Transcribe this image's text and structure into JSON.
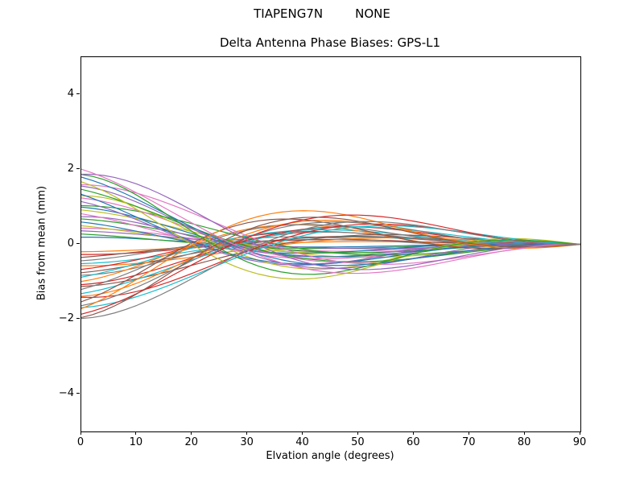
{
  "chart_data": {
    "type": "line",
    "suptitle_left": "TIAPENG7N",
    "suptitle_right": "NONE",
    "title": "Delta Antenna Phase Biases: GPS-L1",
    "xlabel": "Elvation angle (degrees)",
    "ylabel": "Bias from mean (mm)",
    "xlim": [
      0,
      90
    ],
    "ylim": [
      -5,
      5
    ],
    "xticks": [
      0,
      10,
      20,
      30,
      40,
      50,
      60,
      70,
      80,
      90
    ],
    "yticks": [
      -4,
      -2,
      0,
      2,
      4
    ],
    "grid": false,
    "legend": "none",
    "background": "#ffffff",
    "axes_color": "#000000",
    "line_width": 1.2,
    "x_sample_step": 2,
    "n_series": 48,
    "series_model": "y = amp * cos(2*pi*x/period + phase) * exp(-x/decay) * (1 - (x/90)^3)",
    "amps": [
      0.2,
      -0.2,
      0.28,
      -0.28,
      0.36,
      -0.36,
      0.44,
      -0.44,
      0.52,
      -0.52,
      0.6,
      -0.6,
      0.68,
      -0.68,
      0.76,
      -0.76,
      0.84,
      -0.84,
      0.92,
      -0.92,
      1.0,
      -1.0,
      1.08,
      -1.08,
      1.16,
      -1.16,
      1.24,
      -1.24,
      1.32,
      -1.32,
      1.4,
      -1.4,
      1.48,
      -1.48,
      1.56,
      -1.56,
      1.64,
      -1.64,
      1.72,
      -1.72,
      1.8,
      -1.8,
      1.88,
      -1.88,
      1.96,
      -1.96,
      2.04,
      -2.04
    ],
    "phases": [
      -0.3,
      -0.06,
      0.18,
      -0.24,
      0,
      0.24,
      -0.18,
      0.06,
      0.3,
      -0.12,
      0.12,
      -0.3,
      -0.06,
      0.18,
      -0.24,
      0,
      0.24,
      -0.18,
      0.06,
      0.3,
      -0.12,
      0.12,
      -0.3,
      -0.06,
      0.18,
      -0.24,
      0,
      0.24,
      -0.18,
      0.06,
      0.3,
      -0.12,
      0.12,
      -0.3,
      -0.06,
      0.18,
      -0.24,
      0,
      0.24,
      -0.18,
      0.06,
      0.3,
      -0.12,
      0.12,
      -0.3,
      -0.06,
      0.18,
      -0.24
    ],
    "periods": [
      88,
      118,
      106,
      94,
      124,
      112,
      100,
      88,
      118,
      106,
      94,
      124,
      112,
      100,
      88,
      118,
      106,
      94,
      124,
      112,
      100,
      88,
      118,
      106,
      94,
      124,
      112,
      100,
      88,
      118,
      106,
      94,
      124,
      112,
      100,
      88,
      118,
      106,
      94,
      124,
      112,
      100,
      88,
      118,
      106,
      94,
      124,
      112
    ],
    "decays": [
      52,
      73,
      59,
      80,
      66,
      52,
      73,
      59,
      80,
      66,
      52,
      73,
      59,
      80,
      66,
      52,
      73,
      59,
      80,
      66,
      52,
      73,
      59,
      80,
      66,
      52,
      73,
      59,
      80,
      66,
      52,
      73,
      59,
      80,
      66,
      52,
      73,
      59,
      80,
      66,
      52,
      73,
      59,
      80,
      66,
      52,
      73,
      59
    ],
    "palette": [
      "#1f77b4",
      "#ff7f0e",
      "#2ca02c",
      "#d62728",
      "#9467bd",
      "#8c564b",
      "#e377c2",
      "#7f7f7f",
      "#bcbd22",
      "#17becf"
    ]
  }
}
